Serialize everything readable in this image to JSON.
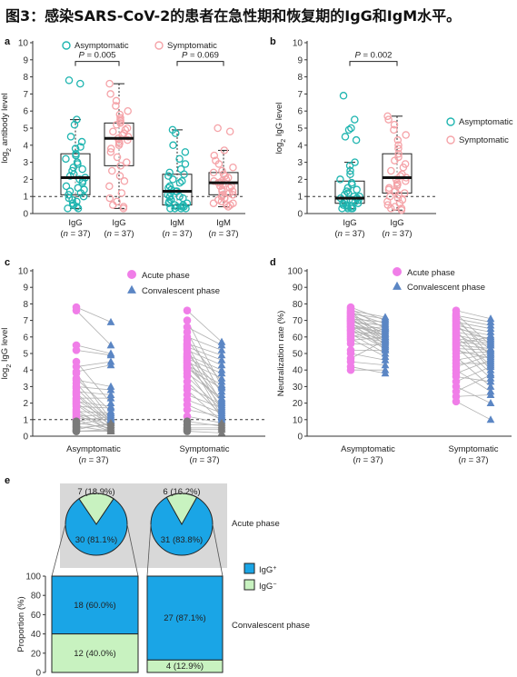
{
  "figure_title": "图3：感染SARS-CoV-2的患者在急性期和恢复期的IgG和IgM水平。",
  "colors": {
    "asymptomatic": "#1fb5b0",
    "symptomatic": "#f5a3a8",
    "acute": "#f07ee8",
    "convalescent": "#5b86c4",
    "igg_pos": "#1aa5e6",
    "igg_neg": "#c8f2c0",
    "panel_bg": "#d8d8d8"
  },
  "chart_data": [
    {
      "panel": "a",
      "type": "box",
      "ylabel_pre": "log",
      "ylabel_sub": "2",
      "ylabel_post": " antibody level",
      "ylim": [
        0,
        10
      ],
      "yticks": [
        0,
        1,
        2,
        3,
        4,
        5,
        6,
        7,
        8,
        9,
        10
      ],
      "reference_line": 1,
      "legend": [
        {
          "label": "Asymptomatic",
          "color_key": "asymptomatic"
        },
        {
          "label": "Symptomatic",
          "color_key": "symptomatic"
        }
      ],
      "groups": [
        {
          "label": "IgG",
          "n": "(n = 37)",
          "series": "asymptomatic",
          "box": {
            "min": 0.3,
            "q1": 1.1,
            "median": 2.1,
            "q3": 3.5,
            "max": 5.5
          },
          "points": [
            7.8,
            7.6,
            5.5,
            5.2,
            4.5,
            4.2,
            3.9,
            3.8,
            3.5,
            3.4,
            3.2,
            3.0,
            2.9,
            2.7,
            2.6,
            2.5,
            2.3,
            2.2,
            2.1,
            2.0,
            1.9,
            1.8,
            1.6,
            1.5,
            1.4,
            1.3,
            1.2,
            1.1,
            1.0,
            0.9,
            0.8,
            0.7,
            0.6,
            0.5,
            0.4,
            0.3,
            0.3
          ]
        },
        {
          "label": "IgG",
          "n": "(n = 37)",
          "series": "symptomatic",
          "box": {
            "min": 0.3,
            "q1": 2.8,
            "median": 4.4,
            "q3": 5.3,
            "max": 7.6
          },
          "points": [
            7.6,
            7.0,
            6.6,
            6.3,
            6.0,
            5.8,
            5.6,
            5.5,
            5.4,
            5.3,
            5.2,
            5.0,
            4.9,
            4.8,
            4.7,
            4.6,
            4.5,
            4.4,
            4.3,
            4.2,
            4.1,
            4.0,
            3.8,
            3.6,
            3.3,
            3.0,
            2.8,
            2.5,
            2.2,
            1.9,
            1.6,
            1.2,
            0.9,
            0.7,
            0.5,
            0.4,
            0.3
          ]
        },
        {
          "label": "IgM",
          "n": "(n = 37)",
          "series": "asymptomatic",
          "box": {
            "min": 0.3,
            "q1": 0.5,
            "median": 1.3,
            "q3": 2.3,
            "max": 4.9
          },
          "points": [
            4.9,
            4.7,
            4.0,
            3.6,
            3.2,
            2.9,
            2.6,
            2.4,
            2.3,
            2.2,
            2.0,
            1.9,
            1.8,
            1.6,
            1.5,
            1.4,
            1.3,
            1.3,
            1.2,
            1.1,
            1.0,
            1.0,
            0.9,
            0.8,
            0.8,
            0.7,
            0.6,
            0.6,
            0.5,
            0.5,
            0.4,
            0.4,
            0.4,
            0.3,
            0.3,
            0.3,
            0.3
          ]
        },
        {
          "label": "IgM",
          "n": "(n = 37)",
          "series": "symptomatic",
          "box": {
            "min": 0.4,
            "q1": 1.1,
            "median": 1.8,
            "q3": 2.4,
            "max": 3.7
          },
          "points": [
            5.0,
            4.8,
            3.7,
            3.4,
            3.1,
            2.9,
            2.7,
            2.5,
            2.4,
            2.3,
            2.2,
            2.1,
            2.0,
            1.9,
            1.9,
            1.8,
            1.8,
            1.7,
            1.6,
            1.6,
            1.5,
            1.4,
            1.3,
            1.3,
            1.2,
            1.1,
            1.1,
            1.0,
            0.9,
            0.9,
            0.8,
            0.7,
            0.6,
            0.6,
            0.5,
            0.5,
            0.4
          ]
        }
      ],
      "annotations": [
        {
          "label": "P = 0.005",
          "from_group": 0,
          "to_group": 1,
          "y": 8.9
        },
        {
          "label": "P = 0.069",
          "from_group": 2,
          "to_group": 3,
          "y": 8.9
        }
      ]
    },
    {
      "panel": "b",
      "type": "box",
      "ylabel_pre": "log",
      "ylabel_sub": "2",
      "ylabel_post": " IgG level",
      "ylim": [
        0,
        10
      ],
      "yticks": [
        0,
        1,
        2,
        3,
        4,
        5,
        6,
        7,
        8,
        9,
        10
      ],
      "reference_line": 1,
      "legend": [
        {
          "label": "Asymptomatic",
          "color_key": "asymptomatic"
        },
        {
          "label": "Symptomatic",
          "color_key": "symptomatic"
        }
      ],
      "groups": [
        {
          "label": "IgG",
          "n": "(n = 37)",
          "series": "asymptomatic",
          "box": {
            "min": 0.3,
            "q1": 0.6,
            "median": 0.9,
            "q3": 1.9,
            "max": 3.0
          },
          "points": [
            6.9,
            5.5,
            5.0,
            4.9,
            4.5,
            4.3,
            3.0,
            2.8,
            2.5,
            2.3,
            2.0,
            1.8,
            1.7,
            1.5,
            1.4,
            1.3,
            1.2,
            1.1,
            1.0,
            1.0,
            0.9,
            0.9,
            0.9,
            0.8,
            0.8,
            0.7,
            0.7,
            0.6,
            0.6,
            0.5,
            0.5,
            0.4,
            0.4,
            0.3,
            0.3,
            0.3,
            0.3
          ]
        },
        {
          "label": "IgG",
          "n": "(n = 37)",
          "series": "symptomatic",
          "box": {
            "min": 0.2,
            "q1": 1.2,
            "median": 2.1,
            "q3": 3.5,
            "max": 5.7
          },
          "points": [
            5.7,
            5.5,
            5.2,
            4.9,
            4.6,
            4.3,
            4.0,
            3.8,
            3.5,
            3.3,
            3.1,
            2.9,
            2.7,
            2.5,
            2.3,
            2.2,
            2.1,
            2.0,
            1.9,
            1.8,
            1.7,
            1.6,
            1.5,
            1.4,
            1.3,
            1.2,
            1.1,
            1.0,
            0.9,
            0.8,
            0.7,
            0.6,
            0.5,
            0.4,
            0.3,
            0.3,
            0.2
          ]
        }
      ],
      "annotations": [
        {
          "label": "P = 0.002",
          "from_group": 0,
          "to_group": 1,
          "y": 8.9
        }
      ]
    },
    {
      "panel": "c",
      "type": "paired-scatter",
      "ylabel_pre": "log",
      "ylabel_sub": "2",
      "ylabel_post": " IgG level",
      "ylim": [
        0,
        10
      ],
      "yticks": [
        0,
        1,
        2,
        3,
        4,
        5,
        6,
        7,
        8,
        9,
        10
      ],
      "reference_line": 1,
      "legend": [
        {
          "label": "Acute phase",
          "color_key": "acute",
          "marker": "circle"
        },
        {
          "label": "Convalescent phase",
          "color_key": "convalescent",
          "marker": "triangle"
        }
      ],
      "groups": [
        {
          "label": "Asymptomatic",
          "n": "(n = 37)",
          "acute": [
            7.8,
            7.6,
            5.5,
            5.2,
            4.5,
            4.2,
            3.9,
            3.8,
            3.5,
            3.4,
            3.2,
            3.0,
            2.9,
            2.7,
            2.6,
            2.5,
            2.3,
            2.2,
            2.1,
            2.0,
            1.9,
            1.8,
            1.6,
            1.5,
            1.4,
            1.3,
            1.2,
            1.1,
            1.0,
            0.9,
            0.8,
            0.7,
            0.6,
            0.5,
            0.4,
            0.3,
            0.3
          ],
          "convalescent": [
            6.9,
            5.5,
            5.0,
            4.9,
            2.0,
            4.5,
            4.3,
            1.0,
            1.5,
            3.0,
            0.9,
            2.8,
            0.9,
            2.5,
            0.8,
            0.6,
            2.3,
            0.9,
            1.8,
            0.7,
            0.5,
            1.7,
            0.3,
            1.4,
            0.6,
            0.4,
            1.3,
            1.0,
            0.3,
            1.2,
            0.5,
            1.1,
            0.3,
            0.7,
            0.8,
            0.4,
            0.3
          ]
        },
        {
          "label": "Symptomatic",
          "n": "(n = 37)",
          "acute": [
            7.6,
            7.0,
            6.6,
            6.3,
            6.0,
            5.8,
            5.6,
            5.5,
            5.4,
            5.3,
            5.2,
            5.0,
            4.9,
            4.8,
            4.7,
            4.6,
            4.5,
            4.4,
            4.3,
            4.2,
            4.1,
            4.0,
            3.8,
            3.6,
            3.3,
            3.0,
            2.8,
            2.5,
            2.2,
            1.9,
            1.6,
            1.2,
            0.9,
            0.7,
            0.5,
            0.4,
            0.3
          ],
          "convalescent": [
            5.7,
            3.0,
            5.5,
            2.5,
            5.2,
            3.3,
            4.9,
            2.0,
            4.6,
            1.5,
            4.3,
            2.7,
            4.0,
            1.2,
            3.8,
            2.2,
            3.5,
            1.8,
            3.1,
            2.1,
            2.9,
            1.1,
            2.3,
            1.6,
            1.3,
            1.9,
            0.9,
            1.7,
            1.4,
            1.0,
            1.2,
            0.8,
            0.6,
            0.7,
            0.5,
            0.4,
            0.2
          ]
        }
      ]
    },
    {
      "panel": "d",
      "type": "paired-scatter",
      "ylabel": "Neutralization rate (%)",
      "ylim": [
        0,
        100
      ],
      "yticks": [
        0,
        10,
        20,
        30,
        40,
        50,
        60,
        70,
        80,
        90,
        100
      ],
      "legend": [
        {
          "label": "Acute phase",
          "color_key": "acute",
          "marker": "circle"
        },
        {
          "label": "Convalescent phase",
          "color_key": "convalescent",
          "marker": "triangle"
        }
      ],
      "groups": [
        {
          "label": "Asymptomatic",
          "n": "(n = 37)",
          "acute": [
            78,
            77,
            76,
            75,
            75,
            74,
            74,
            73,
            72,
            72,
            71,
            71,
            70,
            70,
            69,
            69,
            68,
            68,
            67,
            66,
            66,
            65,
            64,
            64,
            63,
            62,
            61,
            60,
            59,
            58,
            56,
            52,
            50,
            47,
            45,
            42,
            40
          ],
          "convalescent": [
            70,
            65,
            72,
            60,
            68,
            58,
            71,
            66,
            62,
            55,
            69,
            57,
            64,
            60,
            52,
            67,
            61,
            59,
            56,
            63,
            54,
            66,
            58,
            53,
            62,
            50,
            57,
            65,
            48,
            60,
            55,
            52,
            46,
            58,
            43,
            38,
            40
          ]
        },
        {
          "label": "Symptomatic",
          "n": "(n = 37)",
          "acute": [
            76,
            74,
            73,
            72,
            71,
            70,
            69,
            68,
            67,
            66,
            65,
            64,
            63,
            62,
            61,
            60,
            59,
            58,
            57,
            56,
            55,
            54,
            53,
            52,
            50,
            48,
            46,
            44,
            42,
            40,
            38,
            36,
            33,
            30,
            27,
            24,
            21
          ],
          "convalescent": [
            71,
            55,
            69,
            48,
            67,
            52,
            65,
            45,
            63,
            58,
            61,
            40,
            59,
            50,
            57,
            43,
            56,
            38,
            55,
            60,
            53,
            35,
            52,
            47,
            51,
            30,
            50,
            44,
            49,
            27,
            46,
            33,
            42,
            20,
            37,
            25,
            10
          ]
        }
      ]
    },
    {
      "panel": "e",
      "type": "pie-and-stacked-bar",
      "legend": [
        {
          "label_pre": "IgG",
          "label_sup": "+",
          "color_key": "igg_pos"
        },
        {
          "label_pre": "IgG",
          "label_sup": "−",
          "color_key": "igg_neg"
        }
      ],
      "acute": {
        "label": "Acute phase",
        "pies": [
          {
            "positive": {
              "count": 30,
              "label": "30 (81.1%)"
            },
            "negative": {
              "count": 7,
              "label": "7 (18.9%)"
            }
          },
          {
            "positive": {
              "count": 31,
              "label": "31 (83.8%)"
            },
            "negative": {
              "count": 6,
              "label": "6 (16.2%)"
            }
          }
        ]
      },
      "convalescent": {
        "label": "Convalescent phase",
        "ylabel": "Proportion (%)",
        "ylim": [
          0,
          100
        ],
        "yticks": [
          0,
          20,
          40,
          60,
          80,
          100
        ],
        "bars": [
          {
            "positive": {
              "pct": 60.0,
              "label": "18 (60.0%)"
            },
            "negative": {
              "pct": 40.0,
              "label": "12 (40.0%)"
            }
          },
          {
            "positive": {
              "pct": 87.1,
              "label": "27 (87.1%)"
            },
            "negative": {
              "pct": 12.9,
              "label": "4 (12.9%)"
            }
          }
        ]
      }
    }
  ]
}
